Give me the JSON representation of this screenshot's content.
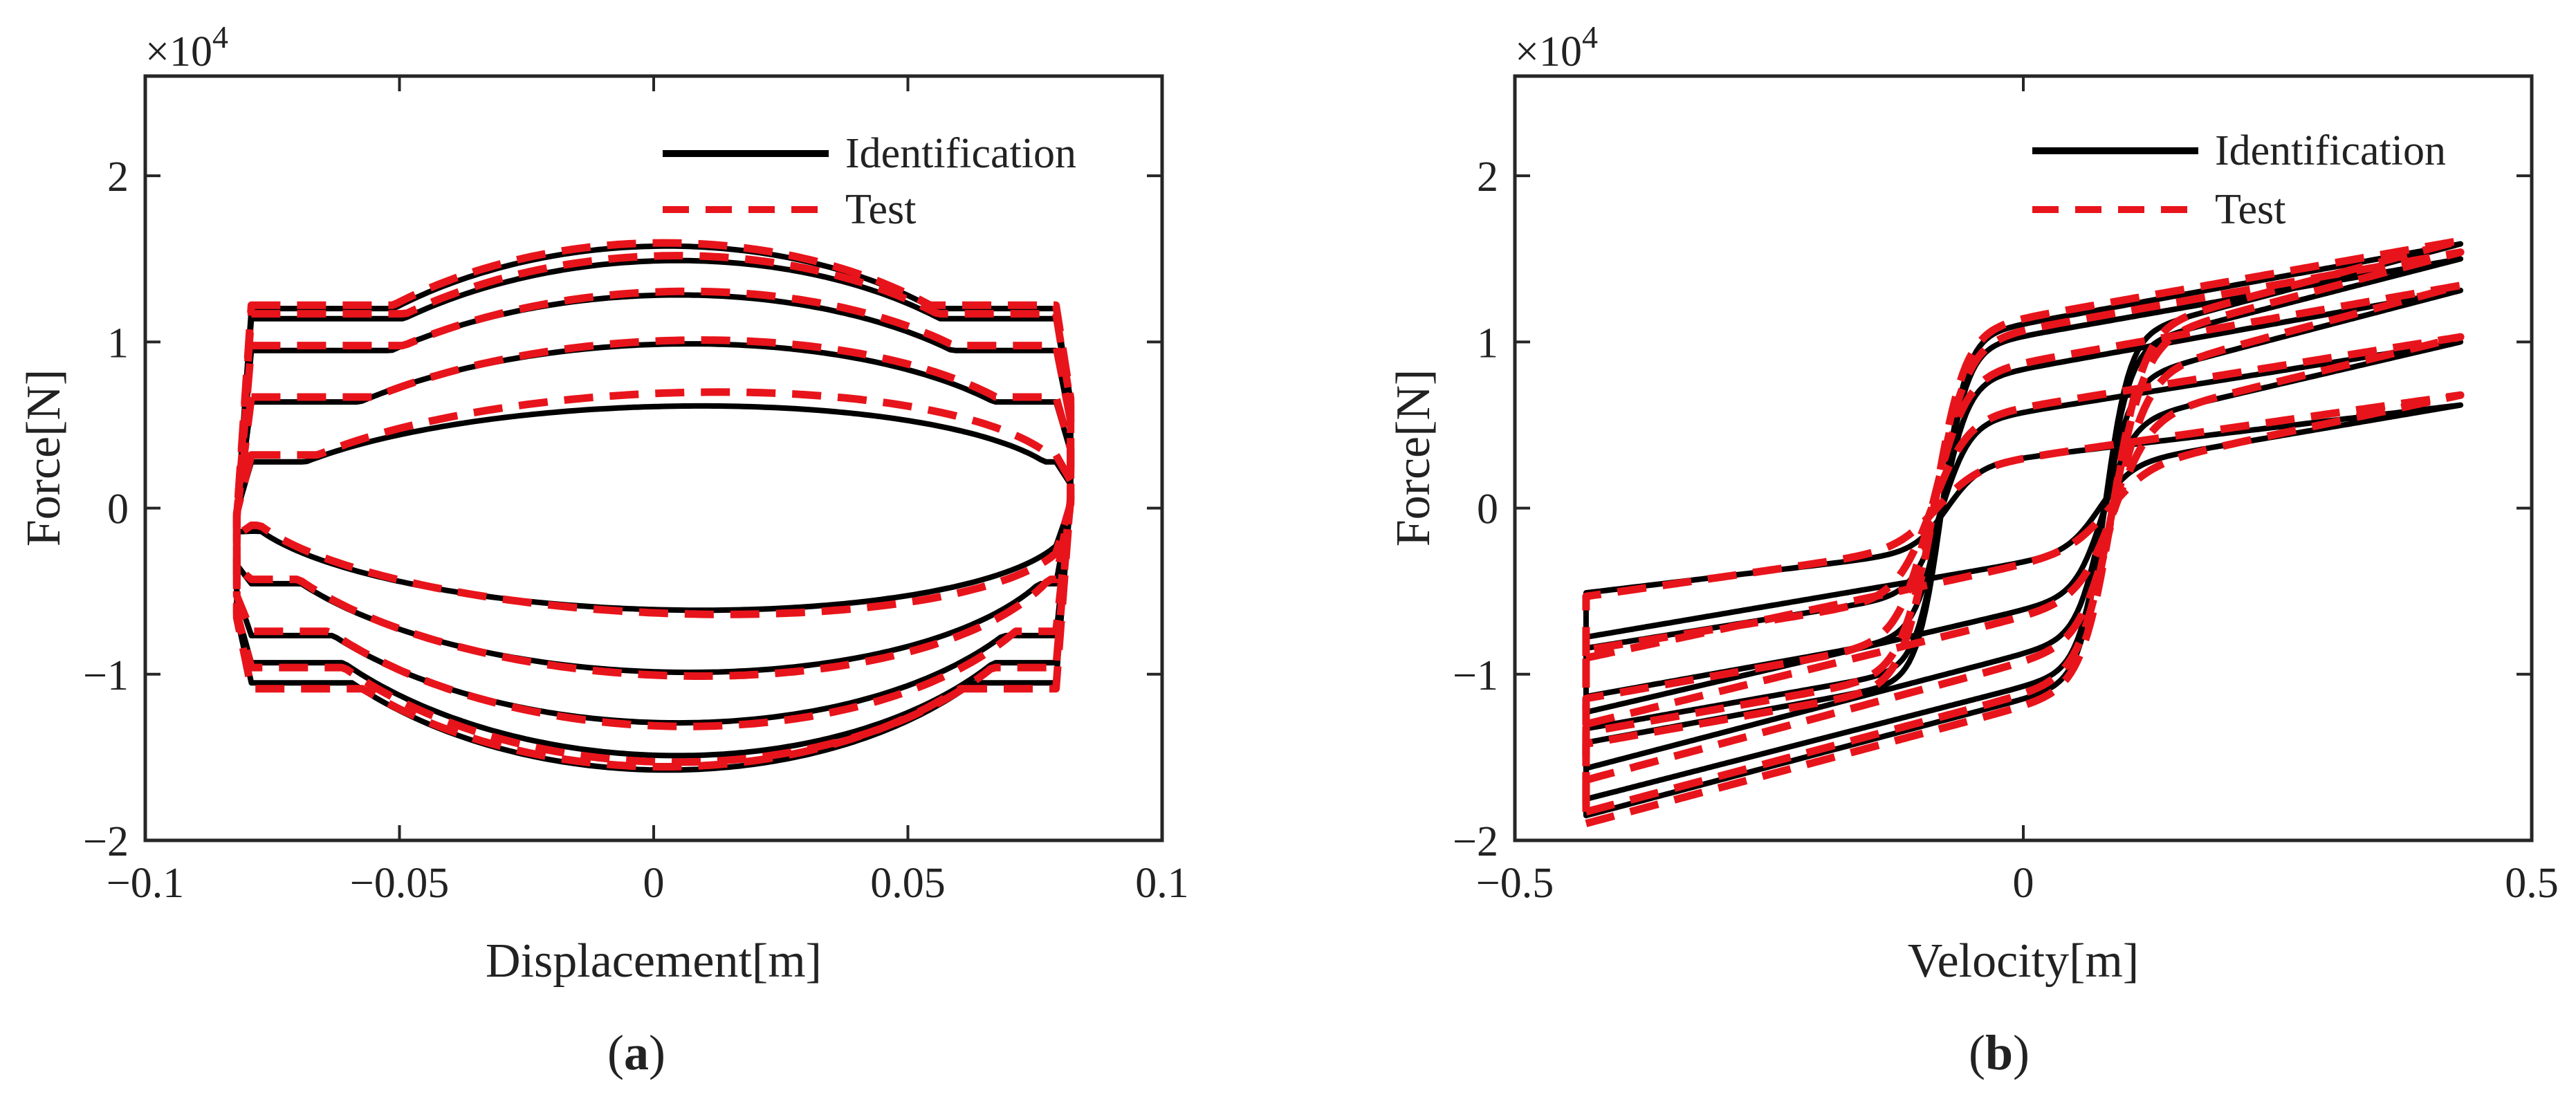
{
  "chart_data": [
    {
      "type": "line",
      "panel_label": "a",
      "xlabel": "Displacement[m]",
      "ylabel": "Force[N]",
      "y_multiplier": "×10",
      "y_multiplier_exp": "4",
      "xlim": [
        -0.1,
        0.1
      ],
      "ylim": [
        -20000,
        26000
      ],
      "xticks": [
        -0.1,
        -0.05,
        0,
        0.05,
        0.1
      ],
      "xtick_labels": [
        "−0.1",
        "−0.05",
        "0",
        "0.05",
        "0.1"
      ],
      "yticks": [
        -20000,
        -10000,
        0,
        10000,
        20000
      ],
      "ytick_labels": [
        "−2",
        "−1",
        "0",
        "1",
        "2"
      ],
      "legend": {
        "position": "top-right",
        "entries": [
          "Identification",
          "Test"
        ]
      },
      "series_style": {
        "Identification": {
          "color": "#000000",
          "dash": "solid"
        },
        "Test": {
          "color": "#e8141b",
          "dash": "dashed"
        }
      },
      "loops": [
        {
          "amplitude_m": 0.082,
          "Identification": {
            "upper_peak": 6200,
            "lower_peak": -6200,
            "upper_at_right": 2600,
            "upper_at_left": 1200
          },
          "Test": {
            "upper_peak": 7000,
            "lower_peak": -6400,
            "upper_at_right": 3000,
            "upper_at_left": 800
          }
        },
        {
          "amplitude_m": 0.082,
          "Identification": {
            "upper_peak": 10000,
            "lower_peak": -10000,
            "upper_at_right": 6200,
            "upper_at_left": 4500
          },
          "Test": {
            "upper_peak": 10200,
            "lower_peak": -10200,
            "upper_at_right": 6500,
            "upper_at_left": 4200
          }
        },
        {
          "amplitude_m": 0.082,
          "Identification": {
            "upper_peak": 13000,
            "lower_peak": -13100,
            "upper_at_right": 9300,
            "upper_at_left": 7800
          },
          "Test": {
            "upper_peak": 13200,
            "lower_peak": -13300,
            "upper_at_right": 9600,
            "upper_at_left": 7500
          }
        },
        {
          "amplitude_m": 0.082,
          "Identification": {
            "upper_peak": 15100,
            "lower_peak": -15100,
            "upper_at_right": 11200,
            "upper_at_left": 9500
          },
          "Test": {
            "upper_peak": 15400,
            "lower_peak": -15500,
            "upper_at_right": 11500,
            "upper_at_left": 9800
          }
        },
        {
          "amplitude_m": 0.082,
          "Identification": {
            "upper_peak": 16000,
            "lower_peak": -16000,
            "upper_at_right": 11800,
            "upper_at_left": 10800
          },
          "Test": {
            "upper_peak": 16200,
            "lower_peak": -15800,
            "upper_at_right": 12000,
            "upper_at_left": 11200
          }
        }
      ]
    },
    {
      "type": "line",
      "panel_label": "b",
      "xlabel": "Velocity[m]",
      "ylabel": "Force[N]",
      "y_multiplier": "×10",
      "y_multiplier_exp": "4",
      "xlim": [
        -0.5,
        0.5
      ],
      "ylim": [
        -20000,
        26000
      ],
      "xticks": [
        -0.5,
        0,
        0.5
      ],
      "xtick_labels": [
        "−0.5",
        "0",
        "0.5"
      ],
      "yticks": [
        -20000,
        -10000,
        0,
        10000,
        20000
      ],
      "ytick_labels": [
        "−2",
        "−1",
        "0",
        "1",
        "2"
      ],
      "legend": {
        "position": "top-right",
        "entries": [
          "Identification",
          "Test"
        ]
      },
      "series_style": {
        "Identification": {
          "color": "#000000",
          "dash": "solid"
        },
        "Test": {
          "color": "#e8141b",
          "dash": "dashed"
        }
      },
      "loops": [
        {
          "v_max": 0.43,
          "Identification": {
            "force_at_vmax": 6200,
            "plateau": 2500,
            "slope_per_mps": 10500,
            "v_offset": 0.075,
            "v_width": 0.032
          },
          "Test": {
            "force_at_vmax": 6800,
            "plateau": 2300,
            "slope_per_mps": 11500,
            "v_offset": 0.085,
            "v_width": 0.04
          }
        },
        {
          "v_max": 0.43,
          "Identification": {
            "force_at_vmax": 10000,
            "plateau": 5000,
            "slope_per_mps": 12500,
            "v_offset": 0.08,
            "v_width": 0.028
          },
          "Test": {
            "force_at_vmax": 10300,
            "plateau": 5200,
            "slope_per_mps": 12500,
            "v_offset": 0.09,
            "v_width": 0.035
          }
        },
        {
          "v_max": 0.43,
          "Identification": {
            "force_at_vmax": 13100,
            "plateau": 7500,
            "slope_per_mps": 13000,
            "v_offset": 0.08,
            "v_width": 0.026
          },
          "Test": {
            "force_at_vmax": 13400,
            "plateau": 7800,
            "slope_per_mps": 13000,
            "v_offset": 0.09,
            "v_width": 0.033
          }
        },
        {
          "v_max": 0.43,
          "Identification": {
            "force_at_vmax": 15000,
            "plateau": 9500,
            "slope_per_mps": 13000,
            "v_offset": 0.08,
            "v_width": 0.025
          },
          "Test": {
            "force_at_vmax": 15400,
            "plateau": 9800,
            "slope_per_mps": 13000,
            "v_offset": 0.088,
            "v_width": 0.032
          }
        },
        {
          "v_max": 0.43,
          "Identification": {
            "force_at_vmax": 15900,
            "plateau": 10200,
            "slope_per_mps": 13000,
            "v_offset": 0.08,
            "v_width": 0.024
          },
          "Test": {
            "force_at_vmax": 16100,
            "plateau": 10500,
            "slope_per_mps": 13000,
            "v_offset": 0.088,
            "v_width": 0.03
          }
        }
      ]
    }
  ],
  "captions": [
    {
      "open": "(",
      "letter": "a",
      "close": ")"
    },
    {
      "open": "(",
      "letter": "b",
      "close": ")"
    }
  ]
}
